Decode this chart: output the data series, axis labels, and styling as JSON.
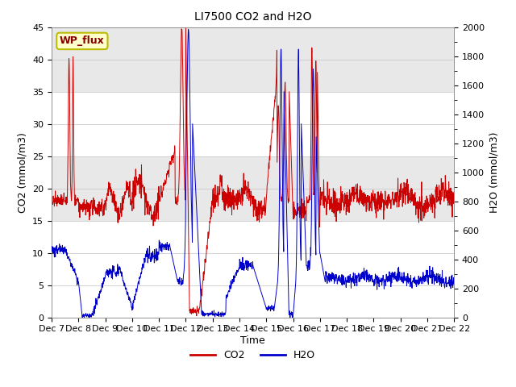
{
  "title": "LI7500 CO2 and H2O",
  "xlabel": "Time",
  "ylabel_left": "CO2 (mmol/m3)",
  "ylabel_right": "H2O (mmol/m3)",
  "xlim": [
    0,
    15
  ],
  "ylim_left": [
    0,
    45
  ],
  "ylim_right": [
    0,
    2000
  ],
  "co2_color": "#cc0000",
  "h2o_color": "#0000cc",
  "annotation_text": "WP_flux",
  "annotation_bg": "#ffffcc",
  "annotation_border": "#bbbb00",
  "xtick_labels": [
    "Dec 7",
    "Dec 8",
    "Dec 9",
    "Dec 10",
    "Dec 11",
    "Dec 12",
    "Dec 13",
    "Dec 14",
    "Dec 15",
    "Dec 16",
    "Dec 17",
    "Dec 18",
    "Dec 19",
    "Dec 20",
    "Dec 21",
    "Dec 22"
  ],
  "xtick_positions": [
    0,
    1,
    2,
    3,
    4,
    5,
    6,
    7,
    8,
    9,
    10,
    11,
    12,
    13,
    14,
    15
  ],
  "yticks_left": [
    0,
    5,
    10,
    15,
    20,
    25,
    30,
    35,
    40,
    45
  ],
  "yticks_right": [
    0,
    200,
    400,
    600,
    800,
    1000,
    1200,
    1400,
    1600,
    1800,
    2000
  ],
  "yticks_right_minor": [
    100,
    300,
    500,
    700,
    900,
    1100,
    1300,
    1500,
    1700,
    1900
  ],
  "legend_co2": "CO2",
  "legend_h2o": "H2O",
  "band_color": "#e8e8e8",
  "band_ranges": [
    [
      35,
      45
    ],
    [
      15,
      25
    ]
  ],
  "title_fontsize": 10,
  "axis_fontsize": 9,
  "tick_fontsize": 8
}
